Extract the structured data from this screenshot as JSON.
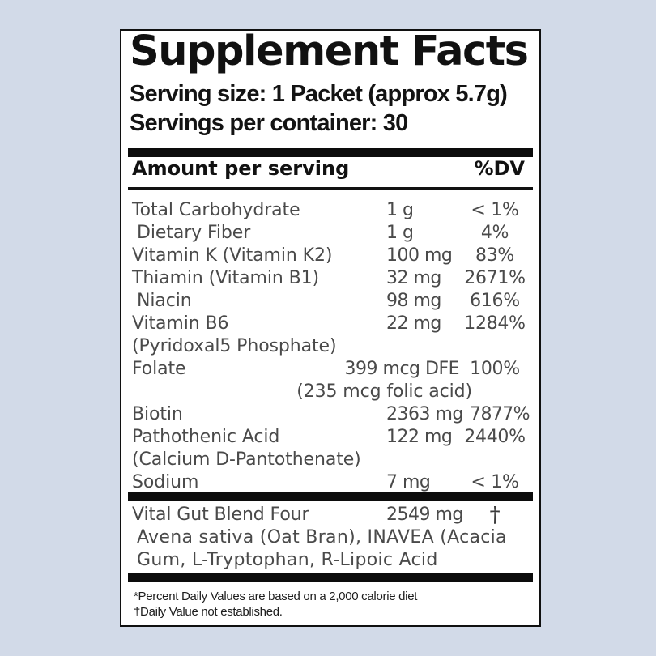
{
  "colors": {
    "background": "#d2dae8",
    "panel": "#ffffff",
    "text": "#111111"
  },
  "label": {
    "title": "Supplement Facts",
    "serving_size": "Serving size: 1 Packet (approx 5.7g)",
    "servings_per_container": "Servings per container: 30",
    "header": {
      "amount": "Amount per serving",
      "dv": "%DV"
    },
    "rows": [
      {
        "name": "Total Carbohydrate",
        "amount": "1 g",
        "dv": "< 1%"
      },
      {
        "name": "Dietary Fiber",
        "amount": "1 g",
        "dv": "4%"
      },
      {
        "name": "Vitamin K (Vitamin K2)",
        "amount": "100 mg",
        "dv": "83%"
      },
      {
        "name": "Thiamin (Vitamin B1)",
        "amount": "32 mg",
        "dv": "2671%"
      },
      {
        "name": "Niacin",
        "amount": "98 mg",
        "dv": "616%"
      },
      {
        "name": "Vitamin B6",
        "name2": "(Pyridoxal5 Phosphate)",
        "amount": "22 mg",
        "dv": "1284%"
      },
      {
        "name": "Folate",
        "sub": "(235 mcg folic acid)",
        "amount": "399 mcg DFE",
        "dv": "100%"
      },
      {
        "name": "Biotin",
        "amount": "2363 mg",
        "dv": "7877%"
      },
      {
        "name": "Pathothenic Acid",
        "name2": "(Calcium D-Pantothenate)",
        "amount": "122 mg",
        "dv": "2440%"
      },
      {
        "name": "Sodium",
        "amount": "7 mg",
        "dv": "< 1%"
      }
    ],
    "blend": {
      "name": "Vital Gut Blend Four",
      "amount": "2549 mg",
      "dv": "†",
      "ingredients_line1": "Avena sativa (Oat Bran), INAVEA (Acacia",
      "ingredients_line2": "Gum, L-Tryptophan, R-Lipoic Acid"
    },
    "footnotes": {
      "line1": "*Percent Daily Values are based on a 2,000 calorie diet",
      "line2": "†Daily Value not established."
    }
  }
}
